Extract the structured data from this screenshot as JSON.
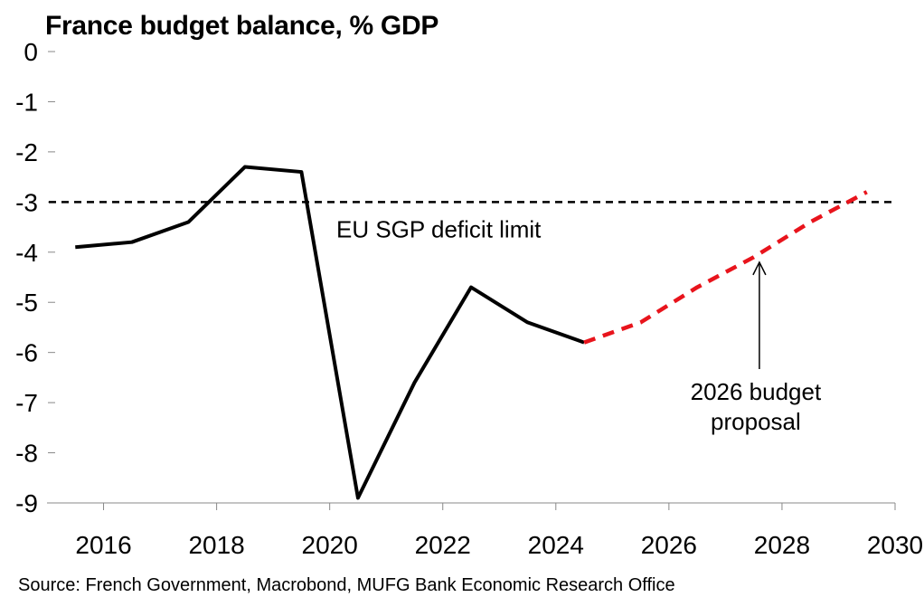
{
  "chart_data": {
    "type": "line",
    "title": "France budget balance, % GDP",
    "source": "Source: French Government, Macrobond, MUFG Bank Economic Research Office",
    "xlabel": "",
    "ylabel": "",
    "xlim": [
      2015,
      2030
    ],
    "ylim": [
      -9,
      0
    ],
    "x_ticks": [
      "2016",
      "2018",
      "2020",
      "2022",
      "2024",
      "2026",
      "2028",
      "2030"
    ],
    "y_ticks": [
      "0",
      "-1",
      "-2",
      "-3",
      "-4",
      "-5",
      "-6",
      "-7",
      "-8",
      "-9"
    ],
    "grid": false,
    "series": [
      {
        "style": "solid",
        "color": "#000000",
        "x": [
          2015,
          2016,
          2017,
          2018,
          2019,
          2020,
          2021,
          2022,
          2023,
          2024
        ],
        "values": [
          -3.9,
          -3.8,
          -3.4,
          -2.3,
          -2.4,
          -8.9,
          -6.6,
          -4.7,
          -5.4,
          -5.8
        ]
      },
      {
        "style": "dashed",
        "color": "#e8141c",
        "x": [
          2024,
          2025,
          2026,
          2027,
          2028,
          2029
        ],
        "values": [
          -5.8,
          -5.4,
          -4.7,
          -4.1,
          -3.4,
          -2.8
        ]
      }
    ],
    "reference_lines": [
      {
        "y": -3,
        "style": "dashed",
        "color": "#000000",
        "label": "EU SGP deficit limit"
      }
    ],
    "annotations": [
      {
        "text_lines": [
          "2026 budget",
          "proposal"
        ],
        "arrow_to": {
          "x": 2027.6,
          "y": -4.2
        }
      }
    ]
  }
}
